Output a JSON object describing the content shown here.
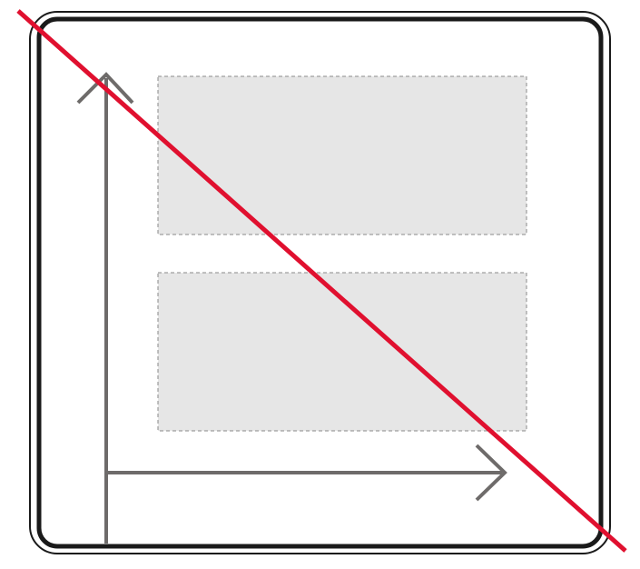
{
  "sign": {
    "type": "end-of-priority-lane-sign",
    "frame_color": "#1a1a1a",
    "background_color": "#ffffff",
    "arrow_color": "#6e6b6a",
    "panel_fill": "#e6e6e6",
    "panel_border_color": "#8a8a8a",
    "strike_color": "#e0102f"
  },
  "icons": [
    "arrow-up-icon",
    "arrow-right-icon"
  ]
}
